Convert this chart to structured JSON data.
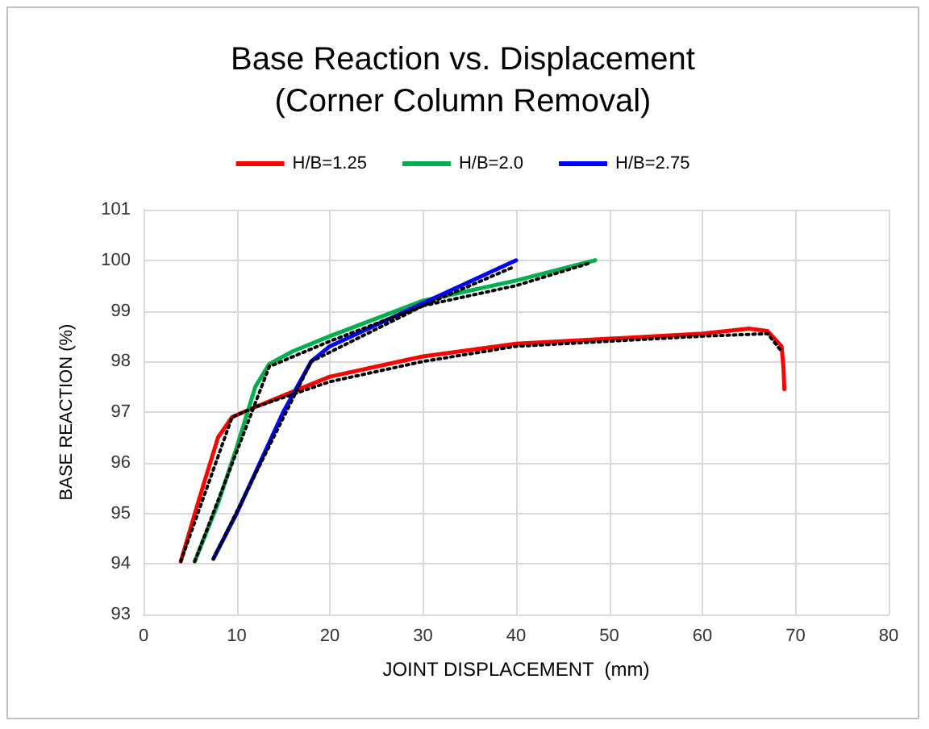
{
  "chart_data": {
    "type": "line",
    "title": "Base Reaction vs. Displacement\n(Corner Column Removal)",
    "xlabel": "JOINT DISPLACEMENT  (mm)",
    "ylabel": "BASE REACTION (%)",
    "xlim": [
      0,
      80
    ],
    "xticks": [
      0,
      10,
      20,
      30,
      40,
      50,
      60,
      70,
      80
    ],
    "ylim": [
      93,
      101
    ],
    "yticks": [
      93,
      94,
      95,
      96,
      97,
      98,
      99,
      100,
      101
    ],
    "grid": true,
    "legend": "top",
    "marker": "none",
    "series": [
      {
        "name": "H/B=1.25",
        "color": "#ff0000",
        "line_style": "solid",
        "x": [
          4,
          6,
          8,
          9.5,
          12,
          16,
          20,
          30,
          40,
          50,
          60,
          65,
          67,
          68.5,
          68.7,
          68.8
        ],
        "values": [
          94.05,
          95.3,
          96.5,
          96.9,
          97.1,
          97.4,
          97.7,
          98.1,
          98.35,
          98.45,
          98.55,
          98.65,
          98.6,
          98.3,
          97.9,
          97.45
        ]
      },
      {
        "name": "H/B=2.0",
        "color": "#00b050",
        "line_style": "solid",
        "x": [
          5.5,
          8,
          10,
          12,
          13.5,
          16,
          20,
          30,
          40,
          48.5
        ],
        "values": [
          94.05,
          95.2,
          96.3,
          97.5,
          97.95,
          98.2,
          98.5,
          99.2,
          99.6,
          100
        ]
      },
      {
        "name": "H/B=2.75",
        "color": "#0000ff",
        "line_style": "solid",
        "x": [
          7.5,
          10,
          12.5,
          15,
          18,
          20,
          30,
          40
        ],
        "values": [
          94.1,
          95,
          96,
          97,
          98,
          98.3,
          99.15,
          100
        ]
      },
      {
        "color": "#000000",
        "line_style": "dotted",
        "x": [
          4,
          9.5,
          12,
          20,
          30,
          40,
          50,
          60,
          67,
          68.5
        ],
        "values": [
          94.05,
          96.9,
          97.1,
          97.6,
          98.0,
          98.3,
          98.4,
          98.5,
          98.55,
          98.2
        ]
      },
      {
        "color": "#000000",
        "line_style": "dotted",
        "x": [
          5.5,
          13.5,
          20,
          30,
          40,
          48
        ],
        "values": [
          94.05,
          97.9,
          98.4,
          99.1,
          99.5,
          99.95
        ]
      },
      {
        "color": "#000000",
        "line_style": "dotted",
        "x": [
          7.5,
          18,
          30,
          39.5
        ],
        "values": [
          94.1,
          98,
          99.1,
          99.85
        ]
      }
    ]
  }
}
